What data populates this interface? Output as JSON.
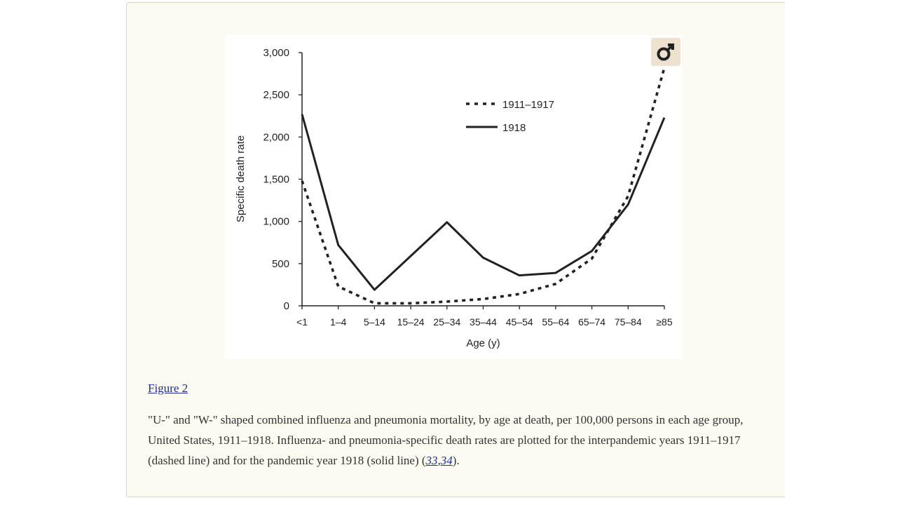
{
  "figure": {
    "link_label": "Figure 2",
    "caption_text": "\"U-\" and \"W-\" shaped combined influenza and pneumonia mortality, by age at death, per 100,000 persons in each age group, United States, 1911–1918. Influenza- and pneumonia-specific death rates are plotted for the interpandemic years 1911–1917 (dashed line) and for the pandemic year 1918 (solid line) (",
    "ref_1": "33",
    "ref_sep": ",",
    "ref_2": "34",
    "caption_end": ").",
    "badge_icon": "male-symbol-icon"
  },
  "chart_data": {
    "type": "line",
    "xlabel": "Age (y)",
    "ylabel": "Specific death rate",
    "categories": [
      "<1",
      "1–4",
      "5–14",
      "15–24",
      "25–34",
      "35–44",
      "45–54",
      "55–64",
      "65–74",
      "75–84",
      "≥85"
    ],
    "ylim": [
      0,
      3000
    ],
    "yticks": [
      0,
      500,
      1000,
      1500,
      2000,
      2500,
      3000
    ],
    "ytick_labels": [
      "0",
      "500",
      "1,000",
      "1,500",
      "2,000",
      "2,500",
      "3,000"
    ],
    "legend_position": "top-right",
    "grid": false,
    "series": [
      {
        "name": "1911–1917",
        "style": "dashed",
        "color": "#222222",
        "values": [
          1480,
          230,
          30,
          30,
          50,
          80,
          140,
          260,
          560,
          1300,
          2820
        ]
      },
      {
        "name": "1918",
        "style": "solid",
        "color": "#222222",
        "values": [
          2270,
          720,
          190,
          590,
          990,
          570,
          360,
          390,
          650,
          1200,
          2230
        ]
      }
    ]
  }
}
